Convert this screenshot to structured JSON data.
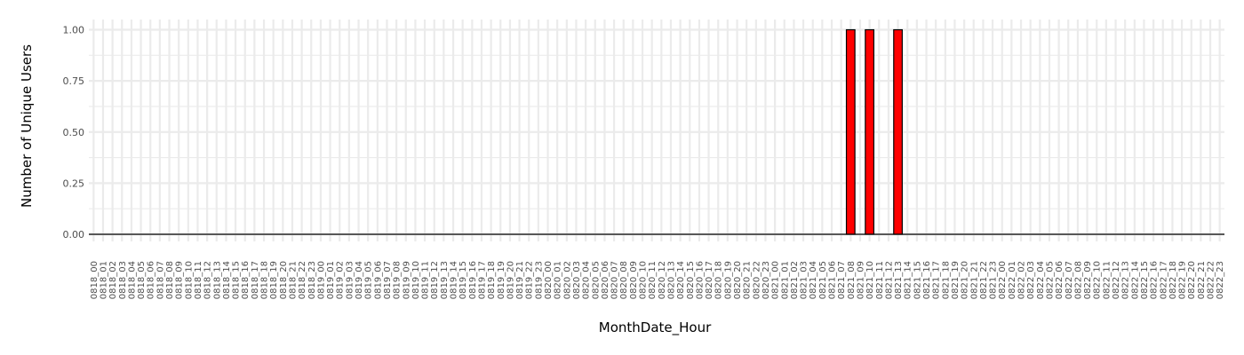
{
  "chart_data": {
    "type": "bar",
    "xlabel": "MonthDate_Hour",
    "ylabel": "Number of Unique Users",
    "ylim": [
      0,
      1.05
    ],
    "yticks": [
      0.0,
      0.25,
      0.5,
      0.75,
      1.0
    ],
    "ytick_labels": [
      "0.00",
      "0.25",
      "0.50",
      "0.75",
      "1.00"
    ],
    "grid": true,
    "categories": [
      "0818_00",
      "0818_01",
      "0818_02",
      "0818_03",
      "0818_04",
      "0818_05",
      "0818_06",
      "0818_07",
      "0818_08",
      "0818_09",
      "0818_10",
      "0818_11",
      "0818_12",
      "0818_13",
      "0818_14",
      "0818_15",
      "0818_16",
      "0818_17",
      "0818_18",
      "0818_19",
      "0818_20",
      "0818_21",
      "0818_22",
      "0818_23",
      "0819_00",
      "0819_01",
      "0819_02",
      "0819_03",
      "0819_04",
      "0819_05",
      "0819_06",
      "0819_07",
      "0819_08",
      "0819_09",
      "0819_10",
      "0819_11",
      "0819_12",
      "0819_13",
      "0819_14",
      "0819_15",
      "0819_16",
      "0819_17",
      "0819_18",
      "0819_19",
      "0819_20",
      "0819_21",
      "0819_22",
      "0819_23",
      "0820_00",
      "0820_01",
      "0820_02",
      "0820_03",
      "0820_04",
      "0820_05",
      "0820_06",
      "0820_07",
      "0820_08",
      "0820_09",
      "0820_10",
      "0820_11",
      "0820_12",
      "0820_13",
      "0820_14",
      "0820_15",
      "0820_16",
      "0820_17",
      "0820_18",
      "0820_19",
      "0820_20",
      "0820_21",
      "0820_22",
      "0820_23",
      "0821_00",
      "0821_01",
      "0821_02",
      "0821_03",
      "0821_04",
      "0821_05",
      "0821_06",
      "0821_07",
      "0821_08",
      "0821_09",
      "0821_10",
      "0821_11",
      "0821_12",
      "0821_13",
      "0821_14",
      "0821_15",
      "0821_16",
      "0821_17",
      "0821_18",
      "0821_19",
      "0821_20",
      "0821_21",
      "0821_22",
      "0821_23",
      "0822_00",
      "0822_01",
      "0822_02",
      "0822_03",
      "0822_04",
      "0822_05",
      "0822_06",
      "0822_07",
      "0822_08",
      "0822_09",
      "0822_10",
      "0822_11",
      "0822_12",
      "0822_13",
      "0822_14",
      "0822_15",
      "0822_16",
      "0822_17",
      "0822_18",
      "0822_19",
      "0822_20",
      "0822_21",
      "0822_22",
      "0822_23"
    ],
    "values": [
      0,
      0,
      0,
      0,
      0,
      0,
      0,
      0,
      0,
      0,
      0,
      0,
      0,
      0,
      0,
      0,
      0,
      0,
      0,
      0,
      0,
      0,
      0,
      0,
      0,
      0,
      0,
      0,
      0,
      0,
      0,
      0,
      0,
      0,
      0,
      0,
      0,
      0,
      0,
      0,
      0,
      0,
      0,
      0,
      0,
      0,
      0,
      0,
      0,
      0,
      0,
      0,
      0,
      0,
      0,
      0,
      0,
      0,
      0,
      0,
      0,
      0,
      0,
      0,
      0,
      0,
      0,
      0,
      0,
      0,
      0,
      0,
      0,
      0,
      0,
      0,
      0,
      0,
      0,
      0,
      1,
      0,
      1,
      0,
      0,
      1,
      0,
      0,
      0,
      0,
      0,
      0,
      0,
      0,
      0,
      0,
      0,
      0,
      0,
      0,
      0,
      0,
      0,
      0,
      0,
      0,
      0,
      0,
      0,
      0,
      0,
      0,
      0,
      0,
      0,
      0,
      0,
      0,
      0,
      0
    ],
    "bar_color": "#ff0000",
    "bar_edge_color": "#000000",
    "grid_color": "#ebebeb"
  }
}
